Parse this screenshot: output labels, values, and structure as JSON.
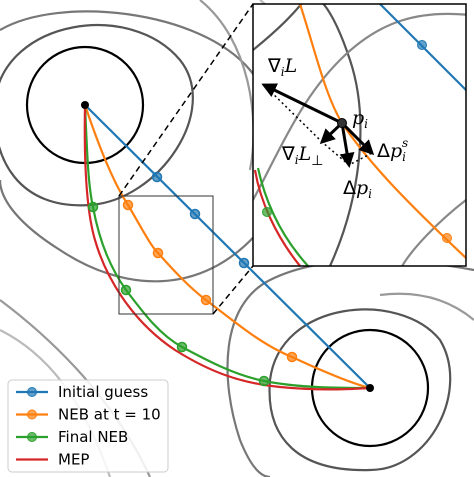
{
  "legend": {
    "items": [
      "Initial guess",
      "NEB at t = 10",
      "Final NEB",
      "MEP"
    ]
  },
  "inset": {
    "grad": {
      "symbol": "∇",
      "sub": "i",
      "main": "L"
    },
    "grad_perp": {
      "symbol": "∇",
      "sub": "i",
      "main": "L",
      "perp": "⊥"
    },
    "point": {
      "main": "p",
      "sub": "i"
    },
    "step": {
      "symbol": "Δ",
      "main": "p",
      "sub": "i"
    },
    "spring_step": {
      "symbol": "Δ",
      "main": "p",
      "sub": "i",
      "sup": "s"
    }
  }
}
